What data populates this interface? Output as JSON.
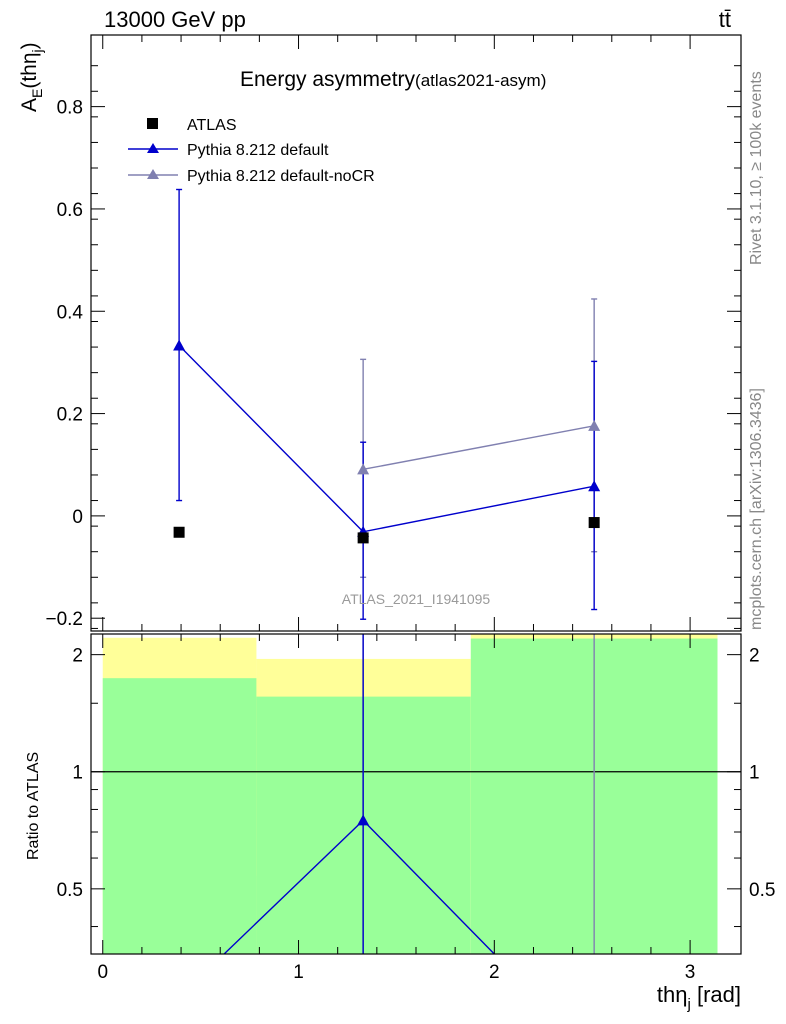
{
  "header": {
    "left": "13000 GeV pp",
    "right": "tt̄"
  },
  "side_text": {
    "rivet": "Rivet 3.1.10, ≥ 100k events",
    "mcplots": "mcplots.cern.ch [arXiv:1306.3436]"
  },
  "colors": {
    "atlas": "#000000",
    "pythia_default": "#0000cc",
    "pythia_nocr": "#8080b0",
    "band_inner": "#99ff99",
    "band_outer": "#ffff99"
  },
  "chart_data": [
    {
      "type": "scatter",
      "title": "Energy asymmetry",
      "title_suffix": "(atlas2021-asym)",
      "ylabel": "A_E(thη_j)",
      "ylabel_main": "A",
      "ylabel_sub": "E",
      "ylabel_rest": "(thη",
      "ylabel_sub2": "j",
      "ylabel_close": ")",
      "xlim": [
        -0.06,
        3.26
      ],
      "ylim": [
        -0.225,
        0.94
      ],
      "yticks": [
        -0.2,
        0,
        0.2,
        0.4,
        0.6,
        0.8
      ],
      "ytick_labels": [
        "−0.2",
        "0",
        "0.2",
        "0.4",
        "0.6",
        "0.8"
      ],
      "watermark": "ATLAS_2021_I1941095",
      "legend_position": "top-left",
      "series": [
        {
          "name": "ATLAS",
          "marker": "square",
          "x": [
            0.39,
            1.33,
            2.51
          ],
          "y": [
            -0.032,
            -0.043,
            -0.013
          ]
        },
        {
          "name": "Pythia 8.212 default",
          "marker": "triangle",
          "x": [
            0.39,
            1.33,
            2.51
          ],
          "y": [
            0.333,
            -0.031,
            0.058
          ],
          "yerr_low": [
            0.303,
            0.171,
            0.241
          ],
          "yerr_high": [
            0.305,
            0.175,
            0.244
          ]
        },
        {
          "name": "Pythia 8.212 default-noCR",
          "marker": "triangle",
          "x": [
            1.33,
            2.51
          ],
          "y": [
            0.091,
            0.176
          ],
          "yerr_low": [
            0.211,
            0.246
          ],
          "yerr_high": [
            0.215,
            0.248
          ]
        }
      ]
    },
    {
      "type": "scatter",
      "ylabel": "Ratio to ATLAS",
      "xlabel": "thη_j [rad]",
      "xlabel_main": "thη",
      "xlabel_sub": "j",
      "xlabel_unit": " [rad]",
      "xlim": [
        -0.06,
        3.26
      ],
      "ylim": [
        0.34,
        2.26
      ],
      "xticks": [
        0,
        1,
        2,
        3
      ],
      "xtick_labels": [
        "0",
        "1",
        "2",
        "3"
      ],
      "yticks": [
        0.5,
        1,
        2
      ],
      "ytick_labels": [
        "0.5",
        "1",
        "2"
      ],
      "bands": [
        {
          "x": [
            0.0,
            0.785
          ],
          "inner": [
            0.34,
            1.74
          ],
          "outer": [
            0.34,
            2.21
          ]
        },
        {
          "x": [
            0.785,
            1.88
          ],
          "inner": [
            0.34,
            1.56
          ],
          "outer": [
            0.54,
            1.95
          ]
        },
        {
          "x": [
            1.88,
            3.14
          ],
          "inner": [
            0.34,
            2.2
          ],
          "outer": [
            0.34,
            2.26
          ]
        }
      ],
      "series": [
        {
          "name": "Pythia 8.212 default",
          "x": [
            0.62,
            1.33,
            2.0
          ],
          "y": [
            0.34,
            0.75,
            0.34
          ],
          "marker_index": 1
        },
        {
          "name": "Pythia 8.212 default-noCR",
          "x": [
            1.33,
            2.51
          ],
          "y": [
            0.34,
            0.34
          ],
          "vlines": [
            1.33,
            2.51
          ]
        }
      ]
    }
  ]
}
